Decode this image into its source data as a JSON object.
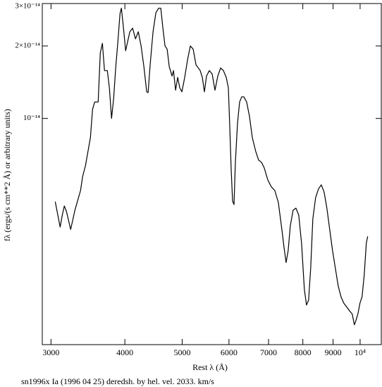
{
  "chart_data": {
    "type": "line",
    "title": "sn1996x Ia (1996 04 25) deredsh. by hel. vel.  2033. km/s",
    "x_label": "Rest λ (Å)",
    "y_label": "fλ (ergs/(s cm**2 Å) or arbitrary units)",
    "x_scale": "log",
    "y_scale": "log",
    "color": "#000000",
    "xlim": [
      2900,
      10860
    ],
    "ylim": [
      1.15e-15,
      3e-14
    ],
    "xticks": [
      3000,
      4000,
      5000,
      6000,
      7000,
      8000,
      9000,
      {
        "value": 10000,
        "label": "10⁴"
      }
    ],
    "yticks": [
      {
        "value": 1e-14,
        "label": "10⁻¹⁴"
      },
      {
        "value": 2e-14,
        "label": "2×10⁻¹⁴"
      },
      {
        "value": 3e-14,
        "label": "3×10⁻¹⁴"
      }
    ],
    "x": [
      3050,
      3109,
      3135,
      3160,
      3187,
      3239,
      3293,
      3366,
      3394,
      3431,
      3498,
      3527,
      3556,
      3605,
      3635,
      3665,
      3695,
      3736,
      3766,
      3798,
      3829,
      3861,
      3892,
      3925,
      3946,
      3979,
      4012,
      4078,
      4123,
      4169,
      4215,
      4261,
      4308,
      4355,
      4379,
      4416,
      4464,
      4514,
      4563,
      4601,
      4639,
      4677,
      4716,
      4755,
      4807,
      4834,
      4874,
      4914,
      4954,
      4995,
      5050,
      5106,
      5162,
      5219,
      5277,
      5364,
      5409,
      5453,
      5498,
      5559,
      5620,
      5682,
      5745,
      5808,
      5872,
      5937,
      5986,
      6019,
      6052,
      6085,
      6119,
      6152,
      6203,
      6254,
      6306,
      6358,
      6428,
      6499,
      6571,
      6661,
      6735,
      6809,
      6884,
      6979,
      7076,
      7173,
      7272,
      7373,
      7433,
      7495,
      7557,
      7619,
      7703,
      7788,
      7874,
      7961,
      8048,
      8115,
      8182,
      8249,
      8318,
      8409,
      8502,
      8596,
      8691,
      8786,
      8883,
      8981,
      9080,
      9180,
      9281,
      9384,
      9487,
      9592,
      9698,
      9778,
      9831,
      9913,
      9994,
      10077,
      10160,
      10244,
      10300
    ],
    "values": [
      4.51e-15,
      3.54e-15,
      3.97e-15,
      4.33e-15,
      4.1e-15,
      3.46e-15,
      4.16e-15,
      5.02e-15,
      5.75e-15,
      6.36e-15,
      8.33e-15,
      1.09e-14,
      1.17e-14,
      1.17e-14,
      1.87e-14,
      2.05e-14,
      1.58e-14,
      1.58e-14,
      1.34e-14,
      1e-14,
      1.21e-14,
      1.64e-14,
      2.07e-14,
      2.72e-14,
      2.87e-14,
      2.37e-14,
      1.91e-14,
      2.29e-14,
      2.37e-14,
      2.14e-14,
      2.29e-14,
      2e-14,
      1.64e-14,
      1.29e-14,
      1.28e-14,
      1.69e-14,
      2.29e-14,
      2.75e-14,
      2.87e-14,
      2.87e-14,
      2.37e-14,
      2e-14,
      1.94e-14,
      1.64e-14,
      1.5e-14,
      1.58e-14,
      1.31e-14,
      1.48e-14,
      1.34e-14,
      1.29e-14,
      1.48e-14,
      1.75e-14,
      2e-14,
      1.94e-14,
      1.67e-14,
      1.58e-14,
      1.48e-14,
      1.29e-14,
      1.5e-14,
      1.58e-14,
      1.53e-14,
      1.31e-14,
      1.5e-14,
      1.62e-14,
      1.58e-14,
      1.48e-14,
      1.34e-14,
      9.22e-15,
      6.15e-15,
      4.54e-15,
      4.39e-15,
      6.58e-15,
      9.54e-15,
      1.17e-14,
      1.23e-14,
      1.23e-14,
      1.17e-14,
      1.02e-14,
      8.33e-15,
      7.28e-15,
      6.71e-15,
      6.58e-15,
      6.23e-15,
      5.56e-15,
      5.2e-15,
      5.02e-15,
      4.48e-15,
      3.46e-15,
      2.93e-15,
      2.52e-15,
      2.83e-15,
      3.58e-15,
      4.16e-15,
      4.24e-15,
      3.97e-15,
      3.03e-15,
      1.95e-15,
      1.68e-15,
      1.76e-15,
      2.39e-15,
      3.83e-15,
      4.69e-15,
      5.09e-15,
      5.3e-15,
      4.95e-15,
      4.24e-15,
      3.46e-15,
      2.83e-15,
      2.39e-15,
      2.02e-15,
      1.82e-15,
      1.71e-15,
      1.65e-15,
      1.59e-15,
      1.54e-15,
      1.39e-15,
      1.44e-15,
      1.54e-15,
      1.71e-15,
      1.82e-15,
      2.23e-15,
      3.03e-15,
      3.24e-15
    ]
  }
}
